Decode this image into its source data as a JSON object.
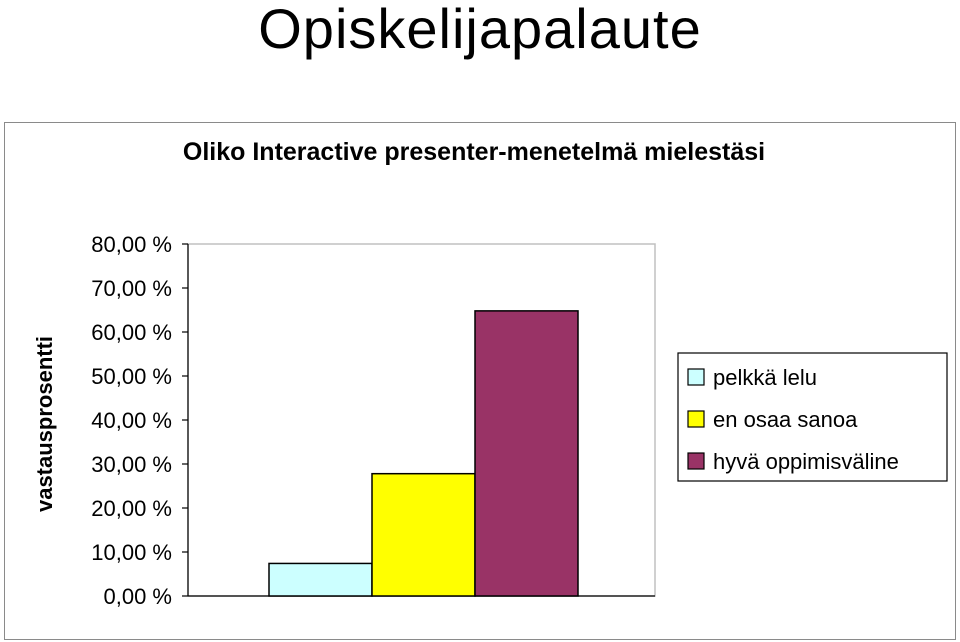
{
  "slide": {
    "title": "Opiskelijapalaute"
  },
  "chart_data": {
    "type": "bar",
    "title": "Oliko Interactive presenter-menetelmä mielestäsi",
    "ylabel": "vastausprosentti",
    "xlabel": "",
    "ylim": [
      0,
      80
    ],
    "yticks": [
      0,
      10,
      20,
      30,
      40,
      50,
      60,
      70,
      80
    ],
    "ytick_labels": [
      "0,00 %",
      "10,00 %",
      "20,00 %",
      "30,00 %",
      "40,00 %",
      "50,00 %",
      "60,00 %",
      "70,00 %",
      "80,00 %"
    ],
    "grid": false,
    "legend_position": "right",
    "series": [
      {
        "name": "pelkkä lelu",
        "values": [
          7.4
        ],
        "color": "#ccffff"
      },
      {
        "name": "en osaa sanoa",
        "values": [
          27.8
        ],
        "color": "#ffff00"
      },
      {
        "name": "hyvä oppimisväline",
        "values": [
          64.8
        ],
        "color": "#993366"
      }
    ]
  }
}
